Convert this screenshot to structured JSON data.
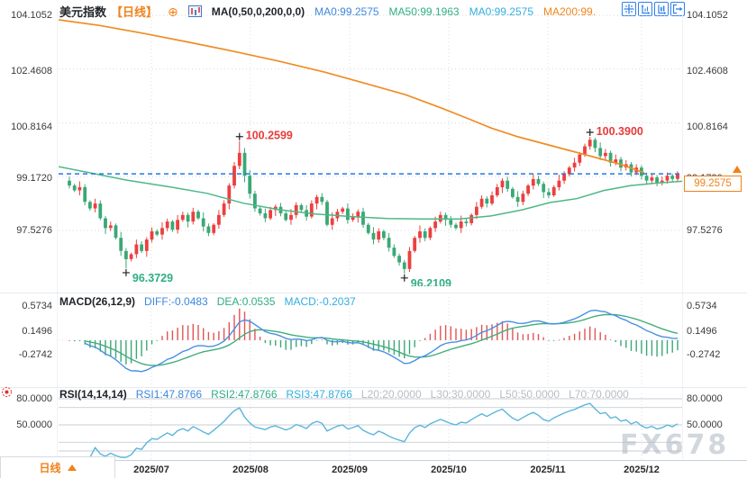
{
  "header": {
    "symbol": "美元指数",
    "period": "【日线】",
    "icons": {
      "add_glyph": "⊕"
    },
    "ma_settings": "MA(0,50,0,200,0,0)",
    "ma_values": [
      {
        "text": "MA0:99.2575",
        "color": "#3d87dd"
      },
      {
        "text": "MA50:99.1963",
        "color": "#2fae84"
      },
      {
        "text": "MA0:99.2575",
        "color": "#32aee0"
      },
      {
        "text": "MA200:99.",
        "color": "#f0861c"
      }
    ]
  },
  "toolbar": {
    "buttons": [
      "crosshair",
      "y-axis-scale",
      "x-axis-scale",
      "detach"
    ]
  },
  "price_axis": {
    "labels": [
      "104.1052",
      "102.4608",
      "100.8164",
      "99.1720",
      "97.5276"
    ]
  },
  "price_tag": {
    "value": "99.2575"
  },
  "macd": {
    "title": "MACD(26,12,9)",
    "diff": "DIFF:-0.0483",
    "dea": "DEA:0.0535",
    "macd": "MACD:-0.2037",
    "axis": [
      "0.5734",
      "0.1496",
      "-0.2742"
    ]
  },
  "rsi": {
    "title": "RSI(14,14,14)",
    "rsi1": "RSI1:47.8766",
    "rsi2": "RSI2:47.8766",
    "rsi3": "RSI3:47.8766",
    "l20": "L20:20.0000",
    "l30": "L30:30.0000",
    "l50": "L50:50.0000",
    "l70": "L70:70.0000",
    "axis": [
      "80.0000",
      "50.0000"
    ]
  },
  "time_axis": {
    "period_label": "日线",
    "dates": [
      "2025/07",
      "2025/08",
      "2025/09",
      "2025/10",
      "2025/11",
      "2025/12"
    ]
  },
  "watermark": {
    "text": "FX678"
  },
  "colors": {
    "up": "#ed3f3f",
    "down": "#3aa876",
    "ma50_line": "#4db885",
    "ma200_line": "#ef8d26",
    "price_line": "#2278e8",
    "diff_line": "#4a90e2",
    "dea_line": "#3fae7a",
    "hist_up": "#e05555",
    "hist_down": "#3aa876",
    "rsi_line": "#5ab6dc",
    "accent_orange": "#f08118",
    "annotation_high": "#e83b3b",
    "annotation_low": "#2fae84"
  },
  "chart_data": {
    "type": "candlestick",
    "symbol": "美元指数",
    "interval": "日线",
    "y_axis_ticks": [
      104.1052,
      102.4608,
      100.8164,
      99.172,
      97.5276
    ],
    "current_price": 99.2575,
    "x_dates": [
      "2025/07",
      "2025/08",
      "2025/09",
      "2025/10",
      "2025/11",
      "2025/12"
    ],
    "candles": [
      [
        99.05,
        99.17,
        98.81,
        98.9
      ],
      [
        98.9,
        98.96,
        98.7,
        98.75
      ],
      [
        98.75,
        99.03,
        98.6,
        98.85
      ],
      [
        98.85,
        98.94,
        98.3,
        98.4
      ],
      [
        98.4,
        98.45,
        98.13,
        98.2
      ],
      [
        98.2,
        98.5,
        98.08,
        98.35
      ],
      [
        98.35,
        98.45,
        97.84,
        97.9
      ],
      [
        97.9,
        97.97,
        97.42,
        97.6
      ],
      [
        97.6,
        97.8,
        97.51,
        97.68
      ],
      [
        97.68,
        97.74,
        97.25,
        97.3
      ],
      [
        97.3,
        97.48,
        96.75,
        96.9
      ],
      [
        96.9,
        96.99,
        96.3729,
        96.65
      ],
      [
        96.65,
        96.85,
        96.58,
        96.8
      ],
      [
        96.8,
        97.25,
        96.68,
        97.1
      ],
      [
        97.1,
        97.2,
        96.84,
        96.9
      ],
      [
        96.9,
        97.32,
        96.72,
        97.25
      ],
      [
        97.25,
        97.62,
        97.16,
        97.5
      ],
      [
        97.5,
        97.56,
        97.35,
        97.4
      ],
      [
        97.4,
        97.78,
        97.25,
        97.6
      ],
      [
        97.6,
        97.89,
        97.5,
        97.8
      ],
      [
        97.8,
        97.85,
        97.48,
        97.55
      ],
      [
        97.55,
        98.0,
        97.43,
        97.85
      ],
      [
        97.85,
        98.1,
        97.79,
        98.0
      ],
      [
        98.0,
        98.07,
        97.62,
        97.8
      ],
      [
        97.8,
        98.22,
        97.71,
        98.1
      ],
      [
        98.1,
        98.16,
        97.85,
        97.9
      ],
      [
        97.9,
        98.08,
        97.5,
        97.65
      ],
      [
        97.65,
        97.74,
        97.35,
        97.45
      ],
      [
        97.45,
        97.75,
        97.38,
        97.7
      ],
      [
        97.7,
        98.15,
        97.58,
        98.0
      ],
      [
        98.0,
        98.45,
        97.94,
        98.35
      ],
      [
        98.35,
        98.97,
        98.17,
        98.9
      ],
      [
        98.9,
        99.62,
        98.81,
        99.5
      ],
      [
        99.5,
        100.2599,
        99.4,
        99.9
      ],
      [
        99.9,
        100.05,
        99.0,
        99.2
      ],
      [
        99.2,
        99.38,
        98.5,
        98.65
      ],
      [
        98.65,
        98.74,
        98.1,
        98.2
      ],
      [
        98.2,
        98.25,
        97.98,
        98.05
      ],
      [
        98.05,
        98.2,
        97.78,
        97.9
      ],
      [
        97.9,
        98.25,
        97.84,
        98.15
      ],
      [
        98.15,
        98.32,
        97.97,
        98.25
      ],
      [
        98.25,
        98.37,
        97.96,
        98.05
      ],
      [
        98.05,
        98.11,
        97.8,
        97.85
      ],
      [
        97.85,
        98.18,
        97.7,
        98.0
      ],
      [
        98.0,
        98.39,
        97.9,
        98.3
      ],
      [
        98.3,
        98.35,
        98.08,
        98.15
      ],
      [
        98.15,
        98.3,
        97.83,
        97.95
      ],
      [
        97.95,
        98.45,
        97.89,
        98.35
      ],
      [
        98.35,
        98.62,
        98.17,
        98.55
      ],
      [
        98.55,
        98.67,
        98.31,
        98.4
      ],
      [
        98.4,
        98.46,
        97.65,
        97.7
      ],
      [
        97.7,
        98.08,
        97.55,
        97.9
      ],
      [
        97.9,
        98.19,
        97.8,
        98.1
      ],
      [
        98.1,
        98.25,
        98.03,
        98.2
      ],
      [
        98.2,
        98.35,
        97.73,
        97.85
      ],
      [
        97.85,
        98.05,
        97.79,
        97.95
      ],
      [
        97.95,
        98.17,
        97.77,
        98.1
      ],
      [
        98.1,
        98.22,
        97.61,
        97.7
      ],
      [
        97.7,
        97.76,
        97.4,
        97.45
      ],
      [
        97.45,
        97.63,
        97.1,
        97.25
      ],
      [
        97.25,
        97.59,
        97.15,
        97.5
      ],
      [
        97.5,
        97.55,
        97.23,
        97.3
      ],
      [
        97.3,
        97.45,
        96.88,
        97.0
      ],
      [
        97.0,
        97.1,
        96.69,
        96.75
      ],
      [
        96.75,
        96.82,
        96.45,
        96.55
      ],
      [
        96.55,
        96.62,
        96.2109,
        96.35
      ],
      [
        96.35,
        97.02,
        96.26,
        96.9
      ],
      [
        96.9,
        97.36,
        96.85,
        97.3
      ],
      [
        97.3,
        97.68,
        97.15,
        97.5
      ],
      [
        97.5,
        97.59,
        97.2,
        97.3
      ],
      [
        97.3,
        97.65,
        97.23,
        97.6
      ],
      [
        97.6,
        97.95,
        97.48,
        97.8
      ],
      [
        97.8,
        98.1,
        97.74,
        98.0
      ],
      [
        98.0,
        98.07,
        97.67,
        97.85
      ],
      [
        97.85,
        97.97,
        97.61,
        97.7
      ],
      [
        97.7,
        97.76,
        97.55,
        97.6
      ],
      [
        97.6,
        97.98,
        97.45,
        97.8
      ],
      [
        97.8,
        97.89,
        97.65,
        97.75
      ],
      [
        97.75,
        98.05,
        97.68,
        98.0
      ],
      [
        98.0,
        98.4,
        97.88,
        98.25
      ],
      [
        98.25,
        98.6,
        98.19,
        98.5
      ],
      [
        98.5,
        98.57,
        98.23,
        98.35
      ],
      [
        98.35,
        98.72,
        98.29,
        98.6
      ],
      [
        98.6,
        98.95,
        98.54,
        98.85
      ],
      [
        98.85,
        99.12,
        98.67,
        99.05
      ],
      [
        99.05,
        99.17,
        98.71,
        98.8
      ],
      [
        98.8,
        98.86,
        98.5,
        98.55
      ],
      [
        98.55,
        98.73,
        98.25,
        98.4
      ],
      [
        98.4,
        98.74,
        98.3,
        98.65
      ],
      [
        98.65,
        98.95,
        98.58,
        98.9
      ],
      [
        98.9,
        99.25,
        98.78,
        99.1
      ],
      [
        99.1,
        99.2,
        98.89,
        98.95
      ],
      [
        98.95,
        99.02,
        98.52,
        98.7
      ],
      [
        98.7,
        98.82,
        98.51,
        98.6
      ],
      [
        98.6,
        98.91,
        98.55,
        98.85
      ],
      [
        98.85,
        99.23,
        98.75,
        99.05
      ],
      [
        99.05,
        99.34,
        98.95,
        99.25
      ],
      [
        99.25,
        99.5,
        99.18,
        99.45
      ],
      [
        99.45,
        99.75,
        99.33,
        99.6
      ],
      [
        99.6,
        99.92,
        99.5,
        99.85
      ],
      [
        99.85,
        100.18,
        99.78,
        100.1
      ],
      [
        100.1,
        100.39,
        100.0,
        100.3
      ],
      [
        100.3,
        100.36,
        99.92,
        100.05
      ],
      [
        100.05,
        100.22,
        99.68,
        99.8
      ],
      [
        99.8,
        100.02,
        99.7,
        99.9
      ],
      [
        99.9,
        99.97,
        99.48,
        99.6
      ],
      [
        99.6,
        99.85,
        99.52,
        99.7
      ],
      [
        99.7,
        99.78,
        99.33,
        99.45
      ],
      [
        99.45,
        99.68,
        99.36,
        99.55
      ],
      [
        99.55,
        99.62,
        99.18,
        99.3
      ],
      [
        99.3,
        99.55,
        99.22,
        99.45
      ],
      [
        99.45,
        99.52,
        99.08,
        99.2
      ],
      [
        99.2,
        99.3,
        98.92,
        99.05
      ],
      [
        99.05,
        99.28,
        98.97,
        99.15
      ],
      [
        99.15,
        99.22,
        98.88,
        98.98
      ],
      [
        98.98,
        99.18,
        98.9,
        99.05
      ],
      [
        99.05,
        99.3,
        98.96,
        99.2
      ],
      [
        99.2,
        99.26,
        99.0,
        99.1
      ],
      [
        99.1,
        99.34,
        99.02,
        99.2575
      ]
    ],
    "high_annotations": [
      {
        "i": 33,
        "price": 100.2599,
        "text": "100.2599"
      },
      {
        "i": 101,
        "price": 100.39,
        "text": "100.3900"
      }
    ],
    "low_annotations": [
      {
        "i": 11,
        "price": 96.3729,
        "text": "96.3729"
      },
      {
        "i": 65,
        "price": 96.2109,
        "text": "96.2109"
      }
    ],
    "ma50_points": [
      [
        65,
        99.48
      ],
      [
        100,
        99.29
      ],
      [
        140,
        99.07
      ],
      [
        190,
        98.85
      ],
      [
        230,
        98.66
      ],
      [
        270,
        98.36
      ],
      [
        310,
        98.16
      ],
      [
        350,
        98.03
      ],
      [
        390,
        97.95
      ],
      [
        430,
        97.89
      ],
      [
        470,
        97.88
      ],
      [
        510,
        97.88
      ],
      [
        545,
        97.97
      ],
      [
        580,
        98.16
      ],
      [
        610,
        98.38
      ],
      [
        640,
        98.5
      ],
      [
        670,
        98.75
      ],
      [
        700,
        98.9
      ],
      [
        730,
        98.98
      ],
      [
        757,
        99.03
      ]
    ],
    "ma200_points": [
      [
        65,
        103.97
      ],
      [
        110,
        103.8
      ],
      [
        160,
        103.55
      ],
      [
        210,
        103.28
      ],
      [
        260,
        103.0
      ],
      [
        310,
        102.7
      ],
      [
        360,
        102.37
      ],
      [
        410,
        101.99
      ],
      [
        450,
        101.68
      ],
      [
        490,
        101.27
      ],
      [
        520,
        100.94
      ],
      [
        545,
        100.66
      ],
      [
        575,
        100.39
      ],
      [
        605,
        100.17
      ],
      [
        635,
        99.95
      ],
      [
        665,
        99.73
      ],
      [
        690,
        99.54
      ],
      [
        715,
        99.29
      ]
    ],
    "macd_panel": {
      "params": [
        26,
        12,
        9
      ],
      "diff": -0.0483,
      "dea": 0.0535,
      "macd": -0.2037,
      "axis_ticks": [
        0.5734,
        0.1496,
        -0.2742
      ]
    },
    "rsi_panel": {
      "params": [
        14,
        14,
        14
      ],
      "rsi1": 47.8766,
      "rsi2": 47.8766,
      "rsi3": 47.8766,
      "levels": [
        20,
        30,
        50,
        70,
        80
      ],
      "axis_ticks": [
        80.0,
        50.0
      ]
    }
  }
}
